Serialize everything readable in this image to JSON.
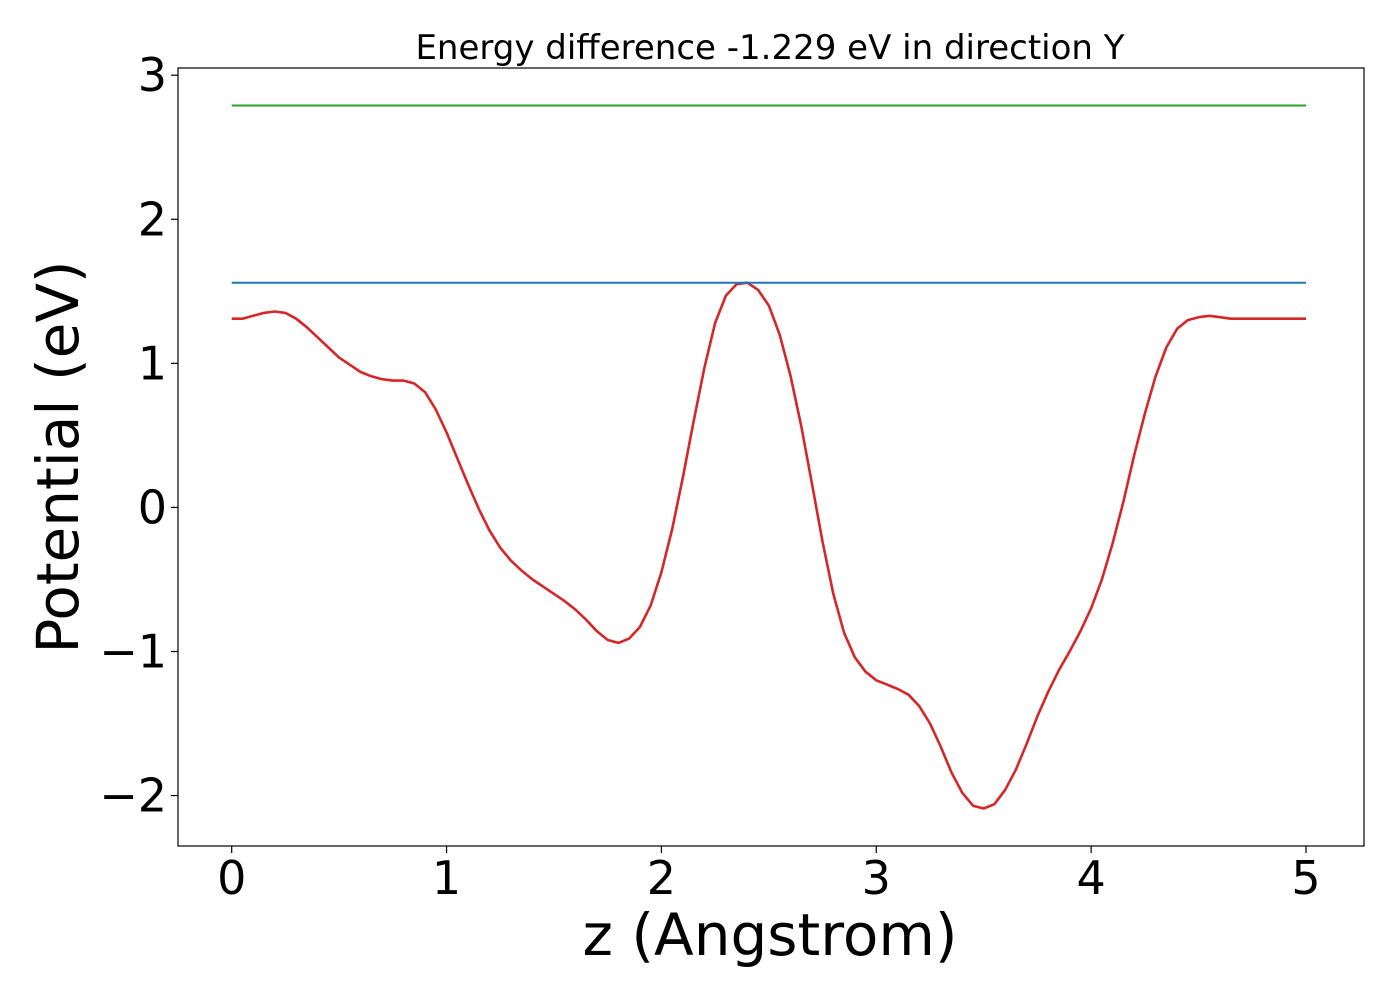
{
  "chart_data": {
    "type": "line",
    "title": "Energy difference -1.229 eV in direction Y",
    "xlabel": "z (Angstrom)",
    "ylabel": "Potential (eV)",
    "xlim": [
      -0.25,
      5.27
    ],
    "ylim": [
      -2.35,
      3.05
    ],
    "xticks": [
      0,
      1,
      2,
      3,
      4,
      5
    ],
    "xtick_labels": [
      "0",
      "1",
      "2",
      "3",
      "4",
      "5"
    ],
    "yticks": [
      -2,
      -1,
      0,
      1,
      2,
      3
    ],
    "ytick_labels": [
      "−2",
      "−1",
      "0",
      "1",
      "2",
      "3"
    ],
    "grid": false,
    "series": [
      {
        "color": "#d62728",
        "x": [
          0.0,
          0.05,
          0.1,
          0.15,
          0.2,
          0.25,
          0.3,
          0.35,
          0.4,
          0.45,
          0.5,
          0.55,
          0.6,
          0.65,
          0.7,
          0.75,
          0.8,
          0.85,
          0.9,
          0.95,
          1.0,
          1.05,
          1.1,
          1.15,
          1.2,
          1.25,
          1.3,
          1.35,
          1.4,
          1.45,
          1.5,
          1.55,
          1.6,
          1.65,
          1.7,
          1.75,
          1.8,
          1.85,
          1.9,
          1.95,
          2.0,
          2.05,
          2.1,
          2.15,
          2.2,
          2.25,
          2.3,
          2.35,
          2.4,
          2.45,
          2.5,
          2.55,
          2.6,
          2.65,
          2.7,
          2.75,
          2.8,
          2.85,
          2.9,
          2.95,
          3.0,
          3.05,
          3.1,
          3.15,
          3.2,
          3.25,
          3.3,
          3.35,
          3.4,
          3.45,
          3.5,
          3.55,
          3.6,
          3.65,
          3.7,
          3.75,
          3.8,
          3.85,
          3.9,
          3.95,
          4.0,
          4.05,
          4.1,
          4.15,
          4.2,
          4.25,
          4.3,
          4.35,
          4.4,
          4.45,
          4.5,
          4.55,
          4.6,
          4.65,
          4.7,
          4.75,
          4.8,
          4.85,
          4.9,
          4.95,
          5.0
        ],
        "y": [
          1.31,
          1.31,
          1.33,
          1.35,
          1.36,
          1.35,
          1.31,
          1.25,
          1.18,
          1.11,
          1.04,
          0.99,
          0.94,
          0.91,
          0.89,
          0.88,
          0.88,
          0.86,
          0.8,
          0.68,
          0.52,
          0.34,
          0.16,
          -0.01,
          -0.16,
          -0.28,
          -0.37,
          -0.44,
          -0.5,
          -0.55,
          -0.6,
          -0.65,
          -0.71,
          -0.78,
          -0.86,
          -0.92,
          -0.94,
          -0.91,
          -0.83,
          -0.68,
          -0.45,
          -0.15,
          0.21,
          0.6,
          0.97,
          1.28,
          1.47,
          1.55,
          1.56,
          1.51,
          1.4,
          1.2,
          0.92,
          0.57,
          0.17,
          -0.24,
          -0.6,
          -0.87,
          -1.04,
          -1.14,
          -1.2,
          -1.23,
          -1.26,
          -1.3,
          -1.38,
          -1.5,
          -1.66,
          -1.84,
          -1.98,
          -2.07,
          -2.09,
          -2.06,
          -1.96,
          -1.82,
          -1.64,
          -1.45,
          -1.28,
          -1.13,
          -1.0,
          -0.86,
          -0.7,
          -0.5,
          -0.25,
          0.04,
          0.36,
          0.65,
          0.91,
          1.11,
          1.24,
          1.3,
          1.32,
          1.33,
          1.32,
          1.31,
          1.31,
          1.31,
          1.31,
          1.31,
          1.31,
          1.31,
          1.31
        ]
      },
      {
        "color": "#1f77b4",
        "x": [
          0.0,
          5.0
        ],
        "y": [
          1.56,
          1.56
        ]
      },
      {
        "color": "#2ca02c",
        "x": [
          0.0,
          5.0
        ],
        "y": [
          2.79,
          2.79
        ]
      }
    ]
  }
}
